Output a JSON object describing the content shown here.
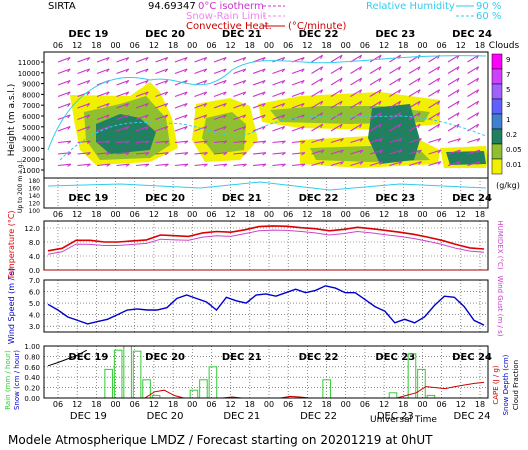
{
  "header": {
    "station": "SIRTA",
    "station_code": "94.69347",
    "isotherm_label": "0°C isotherm",
    "snow_rain_label": "Snow-Rain Limit",
    "convective_label": "Convective Heat.",
    "convective_unit": "(°C/minute)",
    "rh_label": "Relative Humidity",
    "rh_90": "90 %",
    "rh_60": "60 %",
    "clouds_label": "Clouds"
  },
  "footer": {
    "title": "Modele Atmospherique LMDZ / Forecast starting on 20201219 at 0hUT",
    "universal_time": "Universal Time"
  },
  "colors": {
    "temperature": "#dd0000",
    "humidex": "#cc44cc",
    "wind": "#0000cc",
    "precip": "#33cc33",
    "cape": "#cc0000",
    "wind_arrows": "#cc33cc",
    "rh_contour": "#33ccee",
    "cloud_low": "#f0f000",
    "cloud_mid": "#90c030",
    "cloud_high": "#208060"
  },
  "chart_data": [
    {
      "type": "heatmap",
      "title": "Clouds",
      "ylabel": "Height (m a.s.l.)",
      "ylabel2": "Up to 200 m a.g.l.",
      "x_ticks_hours": [
        "06",
        "12",
        "18",
        "00",
        "06",
        "12",
        "18",
        "00",
        "06",
        "12",
        "18",
        "00",
        "06",
        "12",
        "18",
        "00",
        "06",
        "12",
        "18",
        "00",
        "06",
        "12",
        "18"
      ],
      "days": [
        "DEC 19",
        "DEC 20",
        "DEC 21",
        "DEC 22",
        "DEC 23",
        "DEC 24"
      ],
      "y_ticks": [
        "11000",
        "10000",
        "9000",
        "8000",
        "7000",
        "6000",
        "5000",
        "4000",
        "3000",
        "2000",
        "1000"
      ],
      "y_ticks_low": [
        "180",
        "160",
        "140",
        "120",
        "100"
      ],
      "colorbar_label": "(g/kg)",
      "colorbar_ticks": [
        "9",
        "7",
        "5",
        "3",
        "1",
        "0.2",
        "0.05",
        "0.01"
      ]
    },
    {
      "type": "line",
      "ylabel": "Temperature (°C)",
      "ylabel2": "HUMIDEX (°C)",
      "y_ticks": [
        "12.0",
        "8.0",
        "4.0",
        "0.0"
      ],
      "ylim": [
        0,
        14
      ],
      "series": [
        {
          "name": "Temperature",
          "values": [
            5.5,
            6.2,
            8.5,
            8.5,
            8.0,
            8.0,
            8.3,
            8.6,
            10.0,
            9.8,
            9.6,
            10.6,
            11.0,
            10.8,
            11.5,
            12.4,
            12.6,
            12.5,
            12.1,
            11.8,
            11.2,
            11.6,
            12.2,
            11.8,
            11.3,
            10.8,
            10.2,
            9.4,
            8.5,
            7.3,
            6.3,
            6.0
          ]
        },
        {
          "name": "HUMIDEX",
          "values": [
            4.5,
            5.2,
            7.4,
            7.3,
            7.0,
            7.0,
            7.3,
            7.6,
            8.8,
            8.6,
            8.5,
            9.4,
            9.8,
            9.6,
            10.4,
            11.2,
            11.4,
            11.3,
            11.0,
            10.6,
            10.0,
            10.4,
            11.0,
            10.6,
            10.1,
            9.6,
            9.0,
            8.2,
            7.3,
            6.2,
            5.4,
            5.1
          ]
        }
      ]
    },
    {
      "type": "line",
      "ylabel": "Wind Speed (m / s)",
      "ylabel2": "Wind Gust (m / s)",
      "y_ticks": [
        "7.0",
        "6.0",
        "5.0",
        "4.0",
        "3.0"
      ],
      "ylim": [
        2.5,
        7.0
      ],
      "series": [
        {
          "name": "Wind Speed",
          "values": [
            4.9,
            4.4,
            3.8,
            3.5,
            3.2,
            3.4,
            3.6,
            4.0,
            4.4,
            4.5,
            4.4,
            4.4,
            4.6,
            5.4,
            5.7,
            5.4,
            5.1,
            4.4,
            5.5,
            5.2,
            5.0,
            5.7,
            5.8,
            5.6,
            5.9,
            6.2,
            5.9,
            6.1,
            6.5,
            6.3,
            5.9,
            5.9,
            5.3,
            4.7,
            4.3,
            3.3,
            3.6,
            3.3,
            3.8,
            4.8,
            5.6,
            5.5,
            4.7,
            3.5,
            3.1
          ]
        }
      ]
    },
    {
      "type": "bar",
      "ylabel": "Rain (mm / hour)",
      "ylabel2": "Snow (cm / hour)",
      "ylabel3": "CAPE (J / g)",
      "ylabel4": "Snow Depth (cm)",
      "ylabel5": "Cloud Fraction",
      "y_ticks": [
        "1.00",
        "0.80",
        "0.60",
        "0.40",
        "0.20",
        "0.00"
      ],
      "ylim": [
        0,
        1.0
      ],
      "series": [
        {
          "name": "Rain",
          "values": [
            0.0,
            0.0,
            0.0,
            0.0,
            0.0,
            0.0,
            0.55,
            0.92,
            1.0,
            0.9,
            0.35,
            0.05,
            0.0,
            0.0,
            0.0,
            0.15,
            0.35,
            0.6,
            0.0,
            0.0,
            0.0,
            0.0,
            0.0,
            0.0,
            0.0,
            0.0,
            0.0,
            0.0,
            0.0,
            0.35,
            0.0,
            0.0,
            0.0,
            0.0,
            0.0,
            0.0,
            0.1,
            0.0,
            0.85,
            0.55,
            0.05,
            0.0,
            0.0,
            0.0,
            0.0,
            0.0
          ]
        },
        {
          "name": "CAPE",
          "values": [
            0.62,
            0.68,
            0.75,
            0.82,
            0.92,
            0.0,
            0.0,
            0.0,
            0.0,
            0.0,
            0.0,
            0.12,
            0.15,
            0.05,
            0.0,
            0.0,
            0.0,
            0.0,
            0.0,
            0.02,
            0.0,
            0.0,
            0.0,
            0.0,
            0.0,
            0.03,
            0.02,
            0.0,
            0.0,
            0.0,
            0.0,
            0.0,
            0.0,
            0.0,
            0.0,
            0.0,
            0.0,
            0.05,
            0.1,
            0.22,
            0.2,
            0.18,
            0.22,
            0.25,
            0.28,
            0.3
          ]
        }
      ]
    }
  ]
}
